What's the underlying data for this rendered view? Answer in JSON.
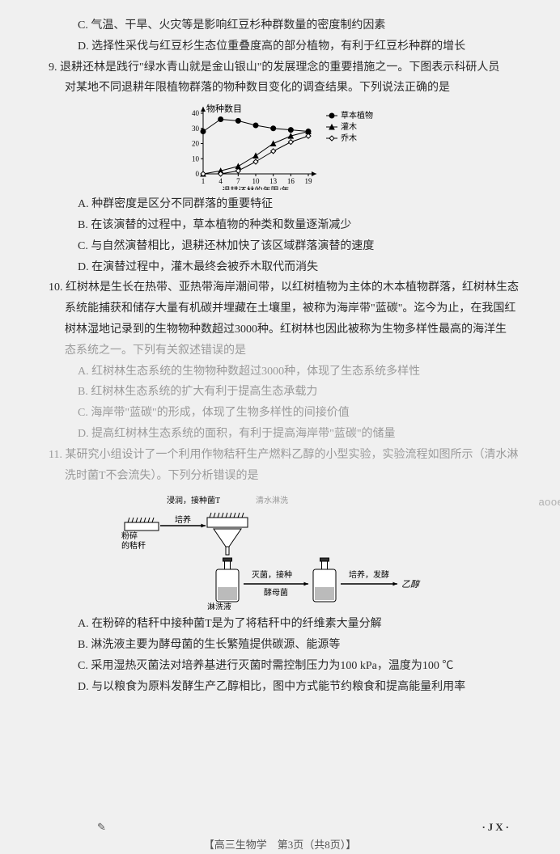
{
  "q8": {
    "optC": "C. 气温、干旱、火灾等是影响红豆杉种群数量的密度制约因素",
    "optD": "D. 选择性采伐与红豆杉生态位重叠度高的部分植物，有利于红豆杉种群的增长"
  },
  "q9": {
    "stem1": "9. 退耕还林是践行\"绿水青山就是金山银山\"的发展理念的重要措施之一。下图表示科研人员",
    "stem2": "对某地不同退耕年限植物群落的物种数目变化的调查结果。下列说法正确的是",
    "optA": "A. 种群密度是区分不同群落的重要特征",
    "optB": "B. 在该演替的过程中，草本植物的种类和数量逐渐减少",
    "optC": "C. 与自然演替相比，退耕还林加快了该区域群落演替的速度",
    "optD": "D. 在演替过程中，灌木最终会被乔木取代而消失",
    "chart": {
      "type": "line",
      "x": [
        1,
        4,
        7,
        10,
        13,
        16,
        19
      ],
      "xlabel": "退耕还林的年限/年",
      "ylabel": "物种数目",
      "ylim": [
        0,
        40
      ],
      "yticks": [
        0,
        10,
        20,
        30,
        40
      ],
      "series": [
        {
          "name": "草本植物",
          "marker": "circle",
          "fill": true,
          "color": "#000",
          "y": [
            28,
            36,
            35,
            32,
            30,
            29,
            28
          ]
        },
        {
          "name": "灌木",
          "marker": "triangle",
          "fill": true,
          "color": "#000",
          "y": [
            0,
            2,
            5,
            12,
            20,
            25,
            28
          ]
        },
        {
          "name": "乔木",
          "marker": "diamond",
          "fill": false,
          "color": "#000",
          "y": [
            0,
            0,
            2,
            8,
            15,
            21,
            25
          ]
        }
      ],
      "bg": "#ffffff",
      "axis_color": "#000",
      "font": 11
    }
  },
  "q10": {
    "l1": "10. 红树林是生长在热带、亚热带海岸潮间带，以红树植物为主体的木本植物群落，红树林生态",
    "l2": "系统能捕获和储存大量有机碳并埋藏在土壤里，被称为海岸带\"蓝碳\"。迄今为止，在我国红",
    "l3": "树林湿地记录到的生物物种数超过3000种。红树林也因此被称为生物多样性最高的海洋生",
    "l4": "态系统之一。下列有关叙述错误的是",
    "optA": "A. 红树林生态系统的生物物种数超过3000种，体现了生态系统多样性",
    "optB": "B. 红树林生态系统的扩大有利于提高生态承载力",
    "optC": "C. 海岸带\"蓝碳\"的形成，体现了生物多样性的间接价值",
    "optD": "D. 提高红树林生态系统的面积，有利于提高海岸带\"蓝碳\"的储量"
  },
  "q11": {
    "l1": "11. 某研究小组设计了一个利用作物秸秆生产燃料乙醇的小型实验，实验流程如图所示（清水淋",
    "l2": "洗时菌T不会流失）。下列分析错误的是",
    "labels": {
      "a": "浸润，接种菌T",
      "b": "清水淋洗",
      "c": "粉碎的秸秆",
      "d": "培养",
      "e": "淋洗液",
      "f": "灭菌，接种酵母菌",
      "g": "培养，发酵",
      "h": "乙醇"
    },
    "optA": "A. 在粉碎的秸秆中接种菌T是为了将秸秆中的纤维素大量分解",
    "optB": "B. 淋洗液主要为酵母菌的生长繁殖提供碳源、能源等",
    "optC": "C. 采用湿热灭菌法对培养基进行灭菌时需控制压力为100 kPa，温度为100 ℃",
    "optD": "D. 与以粮食为原料发酵生产乙醇相比，图中方式能节约粮食和提高能量利用率"
  },
  "watermark": "aooedu.com",
  "footer": {
    "pencil": "✎",
    "mid": "【高三生物学　第3页（共8页）】",
    "right": "·JX·"
  }
}
